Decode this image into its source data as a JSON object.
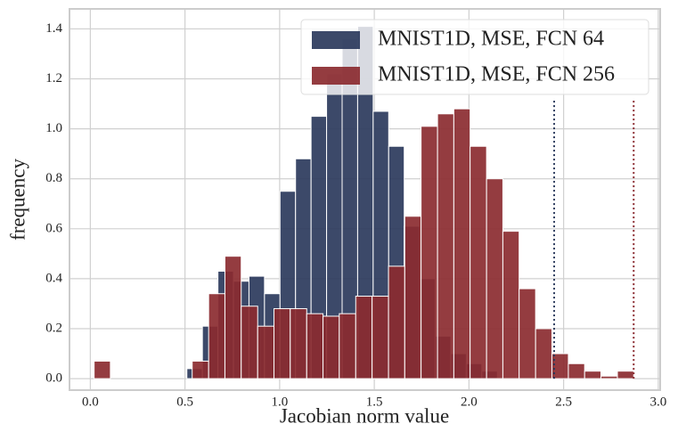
{
  "chart_data": {
    "type": "histogram",
    "x_label": "Jacobian norm value",
    "y_label": "frequency",
    "xlim": [
      -0.11,
      3.01
    ],
    "ylim": [
      -0.046,
      1.48
    ],
    "xticks": [
      {
        "value": 0,
        "label": "0.0"
      },
      0.5,
      {
        "value": 1,
        "label": "1.0"
      },
      1.5,
      {
        "value": 2,
        "label": "2.0"
      },
      2.5,
      {
        "value": 3,
        "label": "3.0"
      }
    ],
    "yticks": [
      {
        "value": 0,
        "label": "0.0"
      },
      0.2,
      0.4,
      0.6,
      0.8,
      {
        "value": 1,
        "label": "1.0"
      },
      1.2,
      1.4
    ],
    "grid": true,
    "legend": "upper right",
    "series": [
      {
        "name": "MNIST1D, MSE, FCN 64",
        "color": "#2b3a5c",
        "marker_line": 2.45,
        "bins": [
          0.51,
          0.592,
          0.674,
          0.756,
          0.838,
          0.92,
          1.002,
          1.084,
          1.166,
          1.248,
          1.33,
          1.412,
          1.494,
          1.576,
          1.658,
          1.74,
          1.822,
          1.904,
          1.986,
          2.068,
          2.15
        ],
        "values": [
          0.04,
          0.21,
          0.43,
          0.39,
          0.41,
          0.34,
          0.75,
          0.88,
          1.05,
          1.22,
          1.36,
          1.41,
          1.07,
          0.93,
          0.61,
          0.4,
          0.17,
          0.1,
          0.06,
          0.03
        ]
      },
      {
        "name": "MNIST1D, MSE, FCN 256",
        "color": "#8b2b30",
        "marker_line": 2.87,
        "bins": [
          0.02,
          0.106,
          0.193,
          0.279,
          0.365,
          0.452,
          0.538,
          0.625,
          0.711,
          0.797,
          0.884,
          0.97,
          1.056,
          1.143,
          1.229,
          1.315,
          1.402,
          1.488,
          1.575,
          1.661,
          1.747,
          1.834,
          1.92,
          2.006,
          2.093,
          2.179,
          2.265,
          2.352,
          2.438,
          2.525,
          2.611,
          2.697,
          2.784,
          2.87
        ],
        "values": [
          0.07,
          0,
          0,
          0,
          0,
          0,
          0.07,
          0.34,
          0.49,
          0.29,
          0.21,
          0.28,
          0.28,
          0.26,
          0.25,
          0.26,
          0.33,
          0.33,
          0.45,
          0.65,
          1.01,
          1.06,
          1.08,
          0.93,
          0.8,
          0.59,
          0.36,
          0.2,
          0.1,
          0.06,
          0.03,
          0.01,
          0.03
        ]
      }
    ]
  }
}
